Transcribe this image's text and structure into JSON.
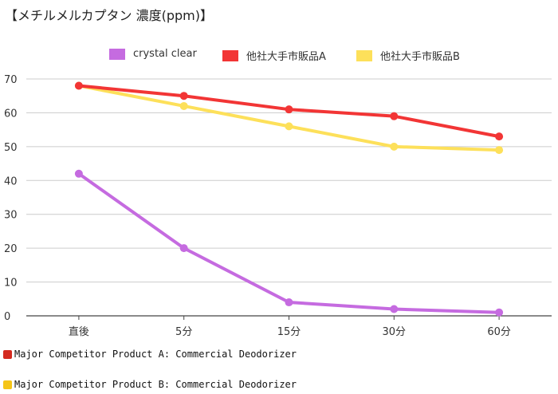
{
  "chart_data": {
    "type": "line",
    "title": "【メチルメルカプタン 濃度(ppm)】",
    "categories": [
      "直後",
      "5分",
      "15分",
      "30分",
      "60分"
    ],
    "ylim": [
      0,
      70
    ],
    "yticks": [
      0,
      10,
      20,
      30,
      40,
      50,
      60,
      70
    ],
    "grid": true,
    "legend_position": "top",
    "series": [
      {
        "name": "crystal clear",
        "color": "#c56be0",
        "values": [
          42,
          20,
          4,
          2,
          1
        ]
      },
      {
        "name": "他社大手市販品A",
        "color": "#f23535",
        "values": [
          68,
          65,
          61,
          59,
          53
        ]
      },
      {
        "name": "他社大手市販品B",
        "color": "#fde05a",
        "values": [
          68,
          62,
          56,
          50,
          49
        ]
      }
    ]
  },
  "notes": [
    {
      "text": "Major Competitor Product A: Commercial Deodorizer",
      "color": "#d42a1f"
    },
    {
      "text": "Major Competitor Product B: Commercial Deodorizer",
      "color": "#f5c518"
    }
  ]
}
